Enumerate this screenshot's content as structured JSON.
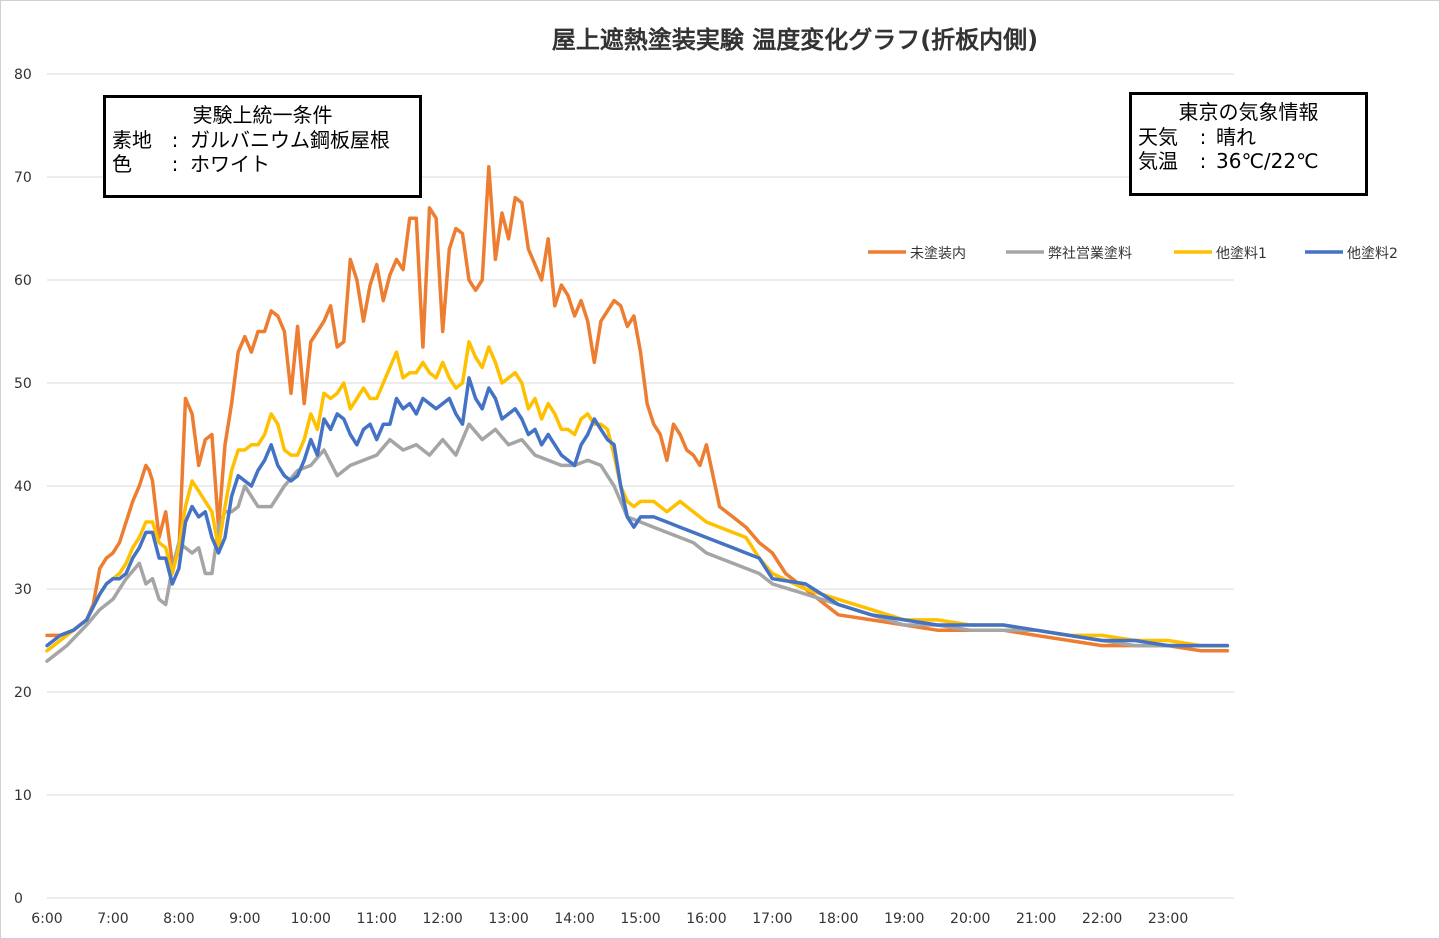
{
  "chart_data": {
    "type": "line",
    "title": "屋上遮熱塗装実験 温度変化グラフ(折板内側)",
    "xlabel": "",
    "ylabel": "",
    "ylim": [
      0,
      80
    ],
    "yticks": [
      0,
      10,
      20,
      30,
      40,
      50,
      60,
      70,
      80
    ],
    "xlim": [
      6,
      24
    ],
    "xticks": [
      "6:00",
      "7:00",
      "8:00",
      "9:00",
      "10:00",
      "11:00",
      "12:00",
      "13:00",
      "14:00",
      "15:00",
      "16:00",
      "17:00",
      "18:00",
      "19:00",
      "20:00",
      "21:00",
      "22:00",
      "23:00"
    ],
    "grid": "horizontal",
    "legend_position": "top-right",
    "series": [
      {
        "name": "未塗装内",
        "color": "#ED7D31",
        "x": [
          6.0,
          6.2,
          6.4,
          6.6,
          6.7,
          6.8,
          6.9,
          7.0,
          7.1,
          7.2,
          7.3,
          7.4,
          7.5,
          7.55,
          7.6,
          7.7,
          7.8,
          7.9,
          8.0,
          8.1,
          8.2,
          8.3,
          8.4,
          8.5,
          8.6,
          8.7,
          8.8,
          8.9,
          9.0,
          9.1,
          9.2,
          9.3,
          9.4,
          9.5,
          9.6,
          9.7,
          9.8,
          9.9,
          10.0,
          10.1,
          10.2,
          10.3,
          10.4,
          10.5,
          10.6,
          10.7,
          10.8,
          10.9,
          11.0,
          11.1,
          11.2,
          11.3,
          11.4,
          11.5,
          11.6,
          11.7,
          11.8,
          11.9,
          12.0,
          12.1,
          12.2,
          12.3,
          12.4,
          12.5,
          12.6,
          12.7,
          12.8,
          12.9,
          13.0,
          13.1,
          13.2,
          13.3,
          13.4,
          13.5,
          13.6,
          13.7,
          13.8,
          13.9,
          14.0,
          14.1,
          14.2,
          14.3,
          14.4,
          14.5,
          14.6,
          14.7,
          14.8,
          14.9,
          15.0,
          15.1,
          15.2,
          15.3,
          15.4,
          15.5,
          15.6,
          15.7,
          15.8,
          15.9,
          16.0,
          16.2,
          16.4,
          16.6,
          16.8,
          17.0,
          17.2,
          17.4,
          17.6,
          17.8,
          18.0,
          18.5,
          19.0,
          19.5,
          20.0,
          20.5,
          21.0,
          21.5,
          22.0,
          22.5,
          23.0,
          23.5,
          23.9
        ],
        "y": [
          25.5,
          25.5,
          26.0,
          27.0,
          28.5,
          32.0,
          33.0,
          33.5,
          34.5,
          36.5,
          38.5,
          40.0,
          42.0,
          41.5,
          40.5,
          35.0,
          37.5,
          32.5,
          33.5,
          48.5,
          47.0,
          42.0,
          44.5,
          45.0,
          36.0,
          44.0,
          48.0,
          53.0,
          54.5,
          53.0,
          55.0,
          55.0,
          57.0,
          56.5,
          55.0,
          49.0,
          55.5,
          48.0,
          54.0,
          55.0,
          56.0,
          57.5,
          53.5,
          54.0,
          62.0,
          60.0,
          56.0,
          59.5,
          61.5,
          58.0,
          60.5,
          62.0,
          61.0,
          66.0,
          66.0,
          53.5,
          67.0,
          66.0,
          55.0,
          63.0,
          65.0,
          64.5,
          60.0,
          59.0,
          60.0,
          71.0,
          62.0,
          66.5,
          64.0,
          68.0,
          67.5,
          63.0,
          61.5,
          60.0,
          64.0,
          57.5,
          59.5,
          58.5,
          56.5,
          58.0,
          56.0,
          52.0,
          56.0,
          57.0,
          58.0,
          57.5,
          55.5,
          56.5,
          53.0,
          48.0,
          46.0,
          45.0,
          42.5,
          46.0,
          45.0,
          43.5,
          43.0,
          42.0,
          44.0,
          38.0,
          37.0,
          36.0,
          34.5,
          33.5,
          31.5,
          30.5,
          29.5,
          28.5,
          27.5,
          27.0,
          26.5,
          26.0,
          26.0,
          26.0,
          25.5,
          25.0,
          24.5,
          24.5,
          24.5,
          24.0,
          24.0
        ]
      },
      {
        "name": "弊社営業塗料",
        "color": "#A5A5A5",
        "x": [
          6.0,
          6.3,
          6.6,
          6.8,
          7.0,
          7.2,
          7.4,
          7.5,
          7.6,
          7.7,
          7.8,
          7.9,
          8.0,
          8.1,
          8.2,
          8.3,
          8.4,
          8.5,
          8.6,
          8.7,
          8.8,
          8.9,
          9.0,
          9.2,
          9.4,
          9.6,
          9.8,
          10.0,
          10.2,
          10.4,
          10.6,
          10.8,
          11.0,
          11.2,
          11.4,
          11.6,
          11.8,
          12.0,
          12.2,
          12.4,
          12.6,
          12.8,
          13.0,
          13.2,
          13.4,
          13.6,
          13.8,
          14.0,
          14.2,
          14.4,
          14.6,
          14.8,
          15.0,
          15.2,
          15.4,
          15.6,
          15.8,
          16.0,
          16.2,
          16.4,
          16.6,
          16.8,
          17.0,
          17.5,
          18.0,
          18.5,
          19.0,
          19.5,
          20.0,
          20.5,
          21.0,
          21.5,
          22.0,
          22.5,
          23.0,
          23.5,
          23.9
        ],
        "y": [
          23.0,
          24.5,
          26.5,
          28.0,
          29.0,
          31.0,
          32.5,
          30.5,
          31.0,
          29.0,
          28.5,
          32.0,
          34.5,
          34.0,
          33.5,
          34.0,
          31.5,
          31.5,
          36.0,
          37.5,
          37.5,
          38.0,
          40.0,
          38.0,
          38.0,
          40.0,
          41.5,
          42.0,
          43.5,
          41.0,
          42.0,
          42.5,
          43.0,
          44.5,
          43.5,
          44.0,
          43.0,
          44.5,
          43.0,
          46.0,
          44.5,
          45.5,
          44.0,
          44.5,
          43.0,
          42.5,
          42.0,
          42.0,
          42.5,
          42.0,
          40.0,
          37.0,
          36.5,
          36.0,
          35.5,
          35.0,
          34.5,
          33.5,
          33.0,
          32.5,
          32.0,
          31.5,
          30.5,
          29.5,
          28.5,
          27.5,
          26.5,
          26.5,
          26.0,
          26.0,
          26.0,
          25.5,
          25.0,
          24.5,
          24.5,
          24.5,
          24.5
        ]
      },
      {
        "name": "他塗料1",
        "color": "#FFC000",
        "x": [
          6.0,
          6.2,
          6.4,
          6.6,
          6.8,
          6.9,
          7.0,
          7.1,
          7.2,
          7.3,
          7.4,
          7.5,
          7.6,
          7.7,
          7.8,
          7.9,
          8.0,
          8.1,
          8.2,
          8.3,
          8.4,
          8.5,
          8.6,
          8.7,
          8.8,
          8.9,
          9.0,
          9.1,
          9.2,
          9.3,
          9.4,
          9.5,
          9.6,
          9.7,
          9.8,
          9.9,
          10.0,
          10.1,
          10.2,
          10.3,
          10.4,
          10.5,
          10.6,
          10.7,
          10.8,
          10.9,
          11.0,
          11.1,
          11.2,
          11.3,
          11.4,
          11.5,
          11.6,
          11.7,
          11.8,
          11.9,
          12.0,
          12.1,
          12.2,
          12.3,
          12.4,
          12.5,
          12.6,
          12.7,
          12.8,
          12.9,
          13.0,
          13.1,
          13.2,
          13.3,
          13.4,
          13.5,
          13.6,
          13.7,
          13.8,
          13.9,
          14.0,
          14.1,
          14.2,
          14.3,
          14.4,
          14.5,
          14.6,
          14.7,
          14.8,
          14.9,
          15.0,
          15.2,
          15.4,
          15.6,
          15.8,
          16.0,
          16.2,
          16.4,
          16.6,
          16.8,
          17.0,
          17.5,
          18.0,
          18.5,
          19.0,
          19.5,
          20.0,
          20.5,
          21.0,
          21.5,
          22.0,
          22.5,
          23.0,
          23.5,
          23.9
        ],
        "y": [
          24.0,
          25.0,
          26.0,
          27.0,
          29.5,
          30.5,
          31.0,
          31.5,
          32.5,
          34.0,
          35.0,
          36.5,
          36.5,
          34.5,
          34.0,
          31.5,
          34.0,
          38.0,
          40.5,
          39.5,
          38.5,
          37.5,
          34.0,
          38.0,
          41.5,
          43.5,
          43.5,
          44.0,
          44.0,
          45.0,
          47.0,
          46.0,
          43.5,
          43.0,
          43.0,
          44.5,
          47.0,
          45.5,
          49.0,
          48.5,
          49.0,
          50.0,
          47.5,
          48.5,
          49.5,
          48.5,
          48.5,
          50.0,
          51.5,
          53.0,
          50.5,
          51.0,
          51.0,
          52.0,
          51.0,
          50.5,
          52.0,
          50.5,
          49.5,
          50.0,
          54.0,
          52.5,
          51.5,
          53.5,
          52.0,
          50.0,
          50.5,
          51.0,
          50.0,
          47.5,
          48.5,
          46.5,
          48.0,
          47.0,
          45.5,
          45.5,
          45.0,
          46.5,
          47.0,
          46.0,
          46.0,
          45.5,
          43.0,
          40.0,
          38.5,
          38.0,
          38.5,
          38.5,
          37.5,
          38.5,
          37.5,
          36.5,
          36.0,
          35.5,
          35.0,
          33.0,
          31.5,
          30.0,
          29.0,
          28.0,
          27.0,
          27.0,
          26.5,
          26.5,
          26.0,
          25.5,
          25.5,
          25.0,
          25.0,
          24.5,
          24.5
        ]
      },
      {
        "name": "他塗料2",
        "color": "#4472C4",
        "x": [
          6.0,
          6.2,
          6.4,
          6.6,
          6.8,
          6.9,
          7.0,
          7.1,
          7.2,
          7.3,
          7.4,
          7.5,
          7.6,
          7.7,
          7.8,
          7.9,
          8.0,
          8.1,
          8.2,
          8.3,
          8.4,
          8.5,
          8.6,
          8.7,
          8.8,
          8.9,
          9.0,
          9.1,
          9.2,
          9.3,
          9.4,
          9.5,
          9.6,
          9.7,
          9.8,
          9.9,
          10.0,
          10.1,
          10.2,
          10.3,
          10.4,
          10.5,
          10.6,
          10.7,
          10.8,
          10.9,
          11.0,
          11.1,
          11.2,
          11.3,
          11.4,
          11.5,
          11.6,
          11.7,
          11.8,
          11.9,
          12.0,
          12.1,
          12.2,
          12.3,
          12.4,
          12.5,
          12.6,
          12.7,
          12.8,
          12.9,
          13.0,
          13.1,
          13.2,
          13.3,
          13.4,
          13.5,
          13.6,
          13.7,
          13.8,
          13.9,
          14.0,
          14.1,
          14.2,
          14.3,
          14.4,
          14.5,
          14.6,
          14.7,
          14.8,
          14.9,
          15.0,
          15.2,
          15.4,
          15.6,
          15.8,
          16.0,
          16.2,
          16.4,
          16.6,
          16.8,
          17.0,
          17.5,
          18.0,
          18.5,
          19.0,
          19.5,
          20.0,
          20.5,
          21.0,
          21.5,
          22.0,
          22.5,
          23.0,
          23.5,
          23.9
        ],
        "y": [
          24.5,
          25.5,
          26.0,
          27.0,
          29.5,
          30.5,
          31.0,
          31.0,
          31.5,
          33.0,
          34.0,
          35.5,
          35.5,
          33.0,
          33.0,
          30.5,
          32.0,
          36.5,
          38.0,
          37.0,
          37.5,
          35.0,
          33.5,
          35.0,
          39.0,
          41.0,
          40.5,
          40.0,
          41.5,
          42.5,
          44.0,
          42.0,
          41.0,
          40.5,
          41.0,
          42.5,
          44.5,
          43.0,
          46.5,
          45.5,
          47.0,
          46.5,
          45.0,
          44.0,
          45.5,
          46.0,
          44.5,
          46.0,
          46.0,
          48.5,
          47.5,
          48.0,
          47.0,
          48.5,
          48.0,
          47.5,
          48.0,
          48.5,
          47.0,
          46.0,
          50.5,
          48.5,
          47.5,
          49.5,
          48.5,
          46.5,
          47.0,
          47.5,
          46.5,
          45.0,
          45.5,
          44.0,
          45.0,
          44.0,
          43.0,
          42.5,
          42.0,
          44.0,
          45.0,
          46.5,
          45.5,
          44.5,
          44.0,
          40.0,
          37.0,
          36.0,
          37.0,
          37.0,
          36.5,
          36.0,
          35.5,
          35.0,
          34.5,
          34.0,
          33.5,
          33.0,
          31.0,
          30.5,
          28.5,
          27.5,
          27.0,
          26.5,
          26.5,
          26.5,
          26.0,
          25.5,
          25.0,
          25.0,
          24.5,
          24.5,
          24.5
        ]
      }
    ],
    "annotations": {
      "conditions_box": {
        "header": "実験上統一条件",
        "rows": [
          {
            "key": "素地",
            "sep": ":",
            "value": "ガルバニウム鋼板屋根"
          },
          {
            "key": "色",
            "sep": ":",
            "value": "ホワイト"
          }
        ]
      },
      "weather_box": {
        "header": "東京の気象情報",
        "rows": [
          {
            "key": "天気",
            "sep": ":",
            "value": "晴れ"
          },
          {
            "key": "気温",
            "sep": ":",
            "value": "36℃/22℃"
          }
        ]
      }
    }
  }
}
